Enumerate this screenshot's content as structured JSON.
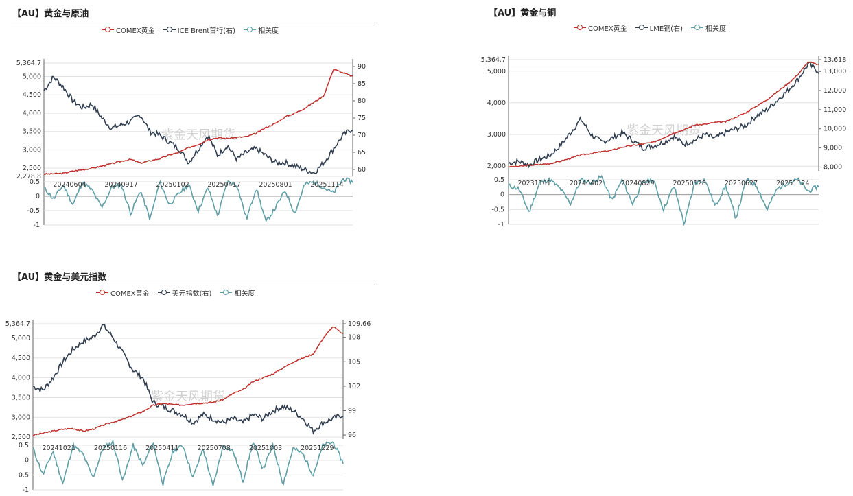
{
  "colors": {
    "gold": "#c0302c",
    "navy": "#2f3d4f",
    "teal": "#5d9ea6",
    "grid": "#e2e2e2"
  },
  "watermark": "紫金天风期货",
  "chart_data": [
    {
      "id": "oil",
      "type": "line",
      "title": "【AU】黄金与原油",
      "legend": [
        "COMEX黄金",
        "ICE Brent首行(右)",
        "相关度"
      ],
      "y_left": {
        "min": 2278.8,
        "max": 5364.7,
        "ticks": [
          "5,364.7",
          "5,000",
          "4,500",
          "4,000",
          "3,500",
          "3,000",
          "2,500",
          "2,278.8"
        ]
      },
      "y_right": {
        "min": 58,
        "max": 91,
        "ticks": [
          "90",
          "85",
          "80",
          "75",
          "70",
          "65",
          "60"
        ]
      },
      "x_labels": [
        "20240604",
        "20240917",
        "20250102",
        "20250417",
        "20250801",
        "20251114"
      ],
      "corr_ticks": [
        "0.5",
        "0",
        "-0.5",
        "-1"
      ],
      "gold": [
        2340,
        2350,
        2360,
        2420,
        2460,
        2500,
        2560,
        2620,
        2690,
        2740,
        2640,
        2700,
        2760,
        2860,
        2930,
        3060,
        3150,
        3280,
        3330,
        3310,
        3340,
        3360,
        3450,
        3610,
        3720,
        3900,
        4000,
        4130,
        4300,
        4470,
        5200,
        5100,
        5000
      ],
      "right": [
        83,
        87,
        84,
        80,
        78,
        79,
        75,
        72,
        73,
        74,
        76,
        71,
        70,
        68,
        66,
        62,
        66,
        70,
        64,
        67,
        63,
        65,
        66,
        64,
        62,
        62,
        61,
        60,
        59,
        62,
        66,
        70,
        72
      ],
      "corr": [
        0.3,
        -0.1,
        0.4,
        -0.3,
        0.5,
        0.2,
        -0.4,
        0.3,
        0.4,
        -0.6,
        0.2,
        -0.8,
        0.5,
        -0.3,
        0.1,
        0.4,
        -0.5,
        0.3,
        -0.7,
        0.5,
        0.4,
        -0.8,
        0.3,
        -0.9,
        -0.4,
        0.2,
        -0.6,
        0.4,
        0.5,
        0.3,
        0.1,
        0.6,
        0.5
      ]
    },
    {
      "id": "copper",
      "type": "line",
      "title": "【AU】黄金与铜",
      "legend": [
        "COMEX黄金",
        "LME铜(右)",
        "相关度"
      ],
      "y_left": {
        "min": 1850,
        "max": 5364.7,
        "ticks": [
          "5,364.7",
          "5,000",
          "4,000",
          "3,000",
          "2,000"
        ]
      },
      "y_right": {
        "min": 7800,
        "max": 13618,
        "ticks": [
          "13,618",
          "13,000",
          "12,000",
          "11,000",
          "10,000",
          "9,000",
          "8,000"
        ]
      },
      "x_labels": [
        "20231101",
        "20240402",
        "20240829",
        "20250128",
        "20250627",
        "20251124"
      ],
      "corr_ticks": [
        "0.5",
        "0",
        "-0.5",
        "-1"
      ],
      "gold": [
        1980,
        1990,
        2030,
        2050,
        2080,
        2150,
        2250,
        2350,
        2400,
        2450,
        2500,
        2600,
        2650,
        2700,
        2750,
        2900,
        3050,
        3150,
        3300,
        3320,
        3380,
        3400,
        3550,
        3700,
        3900,
        4100,
        4350,
        4600,
        4900,
        5300,
        5200
      ],
      "right": [
        8200,
        8300,
        8100,
        8400,
        8600,
        9100,
        9800,
        10500,
        9700,
        9300,
        9500,
        9800,
        9400,
        9000,
        9100,
        9300,
        9600,
        9200,
        9400,
        9700,
        9500,
        9800,
        10000,
        10200,
        10700,
        11000,
        11500,
        12000,
        12600,
        13400,
        13000
      ],
      "corr": [
        0.3,
        0.2,
        -0.6,
        0.4,
        0.5,
        0.2,
        -0.3,
        0.5,
        0.4,
        0.6,
        -0.2,
        0.5,
        -0.3,
        0.4,
        0.5,
        -0.5,
        0.3,
        -1.0,
        0.4,
        0.5,
        -0.4,
        0.3,
        -0.8,
        0.5,
        0.3,
        -0.5,
        0.2,
        0.4,
        0.5,
        0.1,
        0.3
      ]
    },
    {
      "id": "dxy",
      "type": "line",
      "title": "【AU】黄金与美元指数",
      "legend": [
        "COMEX黄金",
        "美元指数(右)",
        "相关度"
      ],
      "y_left": {
        "min": 2450,
        "max": 5364.7,
        "ticks": [
          "5,364.7",
          "5,000",
          "4,500",
          "4,000",
          "3,500",
          "3,000",
          "2,500"
        ]
      },
      "y_right": {
        "min": 95.5,
        "max": 109.66,
        "ticks": [
          "109.66",
          "108",
          "105",
          "102",
          "99",
          "96"
        ]
      },
      "x_labels": [
        "20241021",
        "20250116",
        "20250411",
        "20250708",
        "20251003",
        "20251229"
      ],
      "corr_ticks": [
        "0.5",
        "0",
        "-0.5",
        "-1"
      ],
      "gold": [
        2550,
        2600,
        2650,
        2700,
        2720,
        2650,
        2700,
        2800,
        2880,
        2950,
        3050,
        3150,
        3300,
        3350,
        3320,
        3310,
        3350,
        3360,
        3380,
        3450,
        3600,
        3700,
        3900,
        4000,
        4100,
        4250,
        4400,
        4500,
        4600,
        5000,
        5300,
        5100
      ],
      "right": [
        102,
        101.5,
        103,
        105,
        106.5,
        107.5,
        108,
        109.5,
        108,
        106,
        104,
        103,
        100,
        99.5,
        99,
        98.5,
        97.5,
        98.5,
        98,
        97.5,
        98,
        97.5,
        98.5,
        98,
        99,
        99.5,
        99,
        98,
        96.5,
        97.5,
        98,
        98.5
      ],
      "corr": [
        0.4,
        -0.5,
        0.3,
        -0.8,
        0.5,
        0.2,
        -0.6,
        0.4,
        0.6,
        -0.7,
        0.5,
        -0.2,
        0.6,
        -0.8,
        0.3,
        0.5,
        -0.6,
        0.4,
        -0.9,
        0.5,
        0.3,
        -0.7,
        0.6,
        -0.3,
        0.5,
        -0.8,
        0.4,
        0.2,
        -0.5,
        0.5,
        0.6,
        -0.1
      ]
    }
  ]
}
